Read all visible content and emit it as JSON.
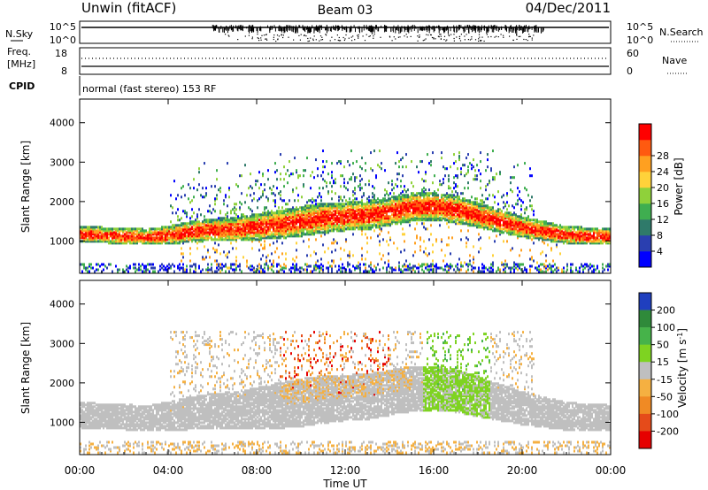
{
  "header": {
    "station": "Unwin (fitACF)",
    "beam": "Beam 03",
    "date": "04/Dec/2011"
  },
  "chart_data": [
    {
      "type": "line",
      "panel": "noise",
      "left_label": "N.Sky",
      "right_label": "N.Search",
      "left_ticks": [
        "10^5",
        "10^0"
      ],
      "right_ticks": [
        "10^5",
        "10^0"
      ]
    },
    {
      "type": "line",
      "panel": "freq-nave",
      "left_label_1": "Freq.",
      "left_label_2": "[MHz]",
      "right_label": "Nave",
      "left_ticks": [
        18,
        8
      ],
      "right_ticks": [
        60,
        0
      ]
    },
    {
      "type": "table",
      "panel": "cpid",
      "label": "CPID",
      "text": "normal (fast stereo) 153 RF"
    },
    {
      "type": "heatmap",
      "panel": "power",
      "ylabel": "Slant Range [km]",
      "yticks": [
        1000,
        2000,
        3000,
        4000
      ],
      "ylim": [
        180,
        4600
      ],
      "colorbar_label": "Power [dB]",
      "colorbar_ticks": [
        4,
        8,
        12,
        16,
        20,
        24,
        28
      ],
      "colorbar_colors": [
        "#0000ff",
        "#2a3fb0",
        "#2f7a6a",
        "#3fae50",
        "#8fd13a",
        "#ffd23a",
        "#ffa020",
        "#ff5a10",
        "#ff0000"
      ],
      "regions": [
        {
          "name": "main-band",
          "times": [
            0,
            1,
            2,
            3,
            4,
            5,
            6,
            7,
            8,
            9,
            10,
            11,
            12,
            13,
            14,
            15,
            16,
            17,
            18,
            19,
            20,
            21,
            22,
            23,
            24
          ],
          "centers": [
            1180,
            1150,
            1130,
            1100,
            1150,
            1230,
            1280,
            1300,
            1360,
            1420,
            1500,
            1580,
            1620,
            1650,
            1750,
            1850,
            1870,
            1800,
            1650,
            1500,
            1350,
            1250,
            1150,
            1130,
            1130
          ],
          "half_widths": [
            210,
            200,
            200,
            200,
            230,
            260,
            280,
            300,
            330,
            360,
            380,
            380,
            360,
            360,
            360,
            360,
            350,
            340,
            320,
            290,
            260,
            240,
            220,
            210,
            210
          ],
          "level": "high"
        },
        {
          "name": "upper-scatter",
          "start": 4.0,
          "end": 20.5,
          "bottom": 1900,
          "top": 3300,
          "level": "low"
        }
      ]
    },
    {
      "type": "heatmap",
      "panel": "velocity",
      "ylabel": "Slant Range [km]",
      "yticks": [
        1000,
        2000,
        3000,
        4000
      ],
      "ylim": [
        180,
        4600
      ],
      "colorbar_label": "Velocity [m s^-1]",
      "colorbar_ticks": [
        200,
        100,
        50,
        15,
        -15,
        -50,
        -100,
        -200
      ],
      "colorbar_colors": [
        "#1f3fbf",
        "#2f8a3a",
        "#46b34a",
        "#7ed321",
        "#bfbfbf",
        "#f5b041",
        "#f08a24",
        "#e54b1a",
        "#e60000"
      ]
    }
  ],
  "time_axis": {
    "ticks": [
      "00:00",
      "04:00",
      "08:00",
      "12:00",
      "16:00",
      "20:00",
      "00:00"
    ],
    "xlabel": "Time UT"
  }
}
